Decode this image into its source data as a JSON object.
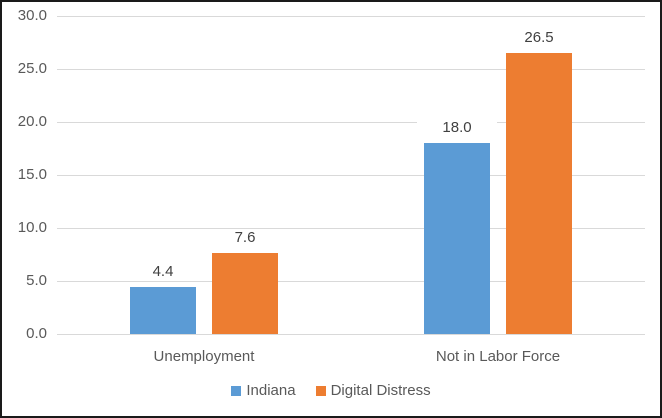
{
  "chart_data": {
    "type": "bar",
    "categories": [
      "Unemployment",
      "Not in Labor Force"
    ],
    "series": [
      {
        "name": "Indiana",
        "color": "#5B9BD5",
        "values": [
          4.4,
          18.0
        ],
        "value_labels": [
          "4.4",
          "18.0"
        ]
      },
      {
        "name": "Digital Distress",
        "color": "#ED7D31",
        "values": [
          7.6,
          26.5
        ],
        "value_labels": [
          "7.6",
          "26.5"
        ]
      }
    ],
    "title": "",
    "xlabel": "",
    "ylabel": "",
    "ylim": [
      0,
      30
    ],
    "ytick_step": 5,
    "ytick_labels": [
      "0.0",
      "5.0",
      "10.0",
      "15.0",
      "20.0",
      "25.0",
      "30.0"
    ],
    "grid": true,
    "legend_position": "bottom",
    "colors": {
      "gridline": "#D9D9D9",
      "axis_text": "#595959",
      "data_label_text": "#404040",
      "background": "#FFFFFF",
      "frame_border": "#1A1A1A"
    }
  }
}
